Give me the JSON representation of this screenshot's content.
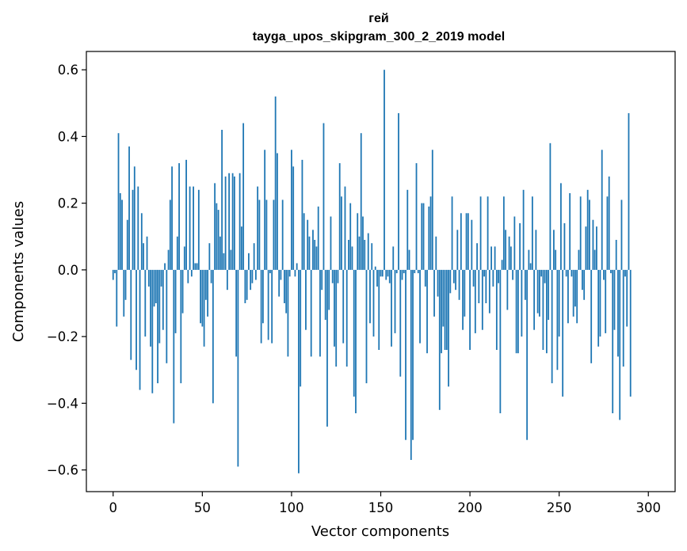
{
  "chart_data": {
    "type": "bar",
    "title": "гей",
    "subtitle": "tayga_upos_skipgram_300_2_2019 model",
    "xlabel": "Vector components",
    "ylabel": "Components values",
    "xlim": [
      -15,
      315
    ],
    "ylim": [
      -0.665,
      0.655
    ],
    "xticks": [
      0,
      50,
      100,
      150,
      200,
      250,
      300
    ],
    "xtick_labels": [
      "0",
      "50",
      "100",
      "150",
      "200",
      "250",
      "300"
    ],
    "yticks": [
      0.6,
      0.4,
      0.2,
      0.0,
      -0.2,
      -0.4,
      -0.6
    ],
    "ytick_labels": [
      "0.6",
      "0.4",
      "0.2",
      "0.0",
      "−0.2",
      "−0.4",
      "−0.6"
    ],
    "grid": false,
    "bar_color": "#1f77b4",
    "x_start": 0,
    "values": [
      -0.03,
      -0.01,
      -0.17,
      0.41,
      0.23,
      0.21,
      -0.14,
      -0.09,
      0.15,
      0.37,
      -0.27,
      0.24,
      0.31,
      -0.3,
      0.25,
      -0.36,
      0.17,
      0.08,
      -0.2,
      0.1,
      -0.05,
      -0.23,
      -0.37,
      -0.11,
      -0.1,
      -0.34,
      -0.22,
      -0.05,
      -0.18,
      0.02,
      -0.28,
      0.06,
      0.21,
      0.31,
      -0.46,
      -0.19,
      0.1,
      0.32,
      -0.34,
      -0.13,
      0.07,
      0.33,
      -0.04,
      0.25,
      -0.02,
      0.25,
      0.02,
      0.02,
      0.24,
      -0.16,
      -0.17,
      -0.23,
      -0.09,
      -0.14,
      0.08,
      -0.04,
      -0.4,
      0.26,
      0.2,
      0.18,
      0.1,
      0.42,
      0.05,
      0.28,
      -0.06,
      0.29,
      0.06,
      0.29,
      0.28,
      -0.26,
      -0.59,
      0.29,
      0.13,
      0.44,
      -0.1,
      -0.09,
      0.05,
      -0.06,
      -0.04,
      0.08,
      -0.03,
      0.25,
      0.21,
      -0.22,
      -0.16,
      0.36,
      0.21,
      -0.21,
      -0.01,
      -0.22,
      0.21,
      0.52,
      0.35,
      -0.08,
      -0.03,
      0.21,
      -0.1,
      -0.13,
      -0.26,
      -0.02,
      0.36,
      0.31,
      -0.02,
      0.02,
      -0.61,
      -0.35,
      0.33,
      0.17,
      -0.18,
      0.15,
      0.1,
      -0.26,
      0.12,
      0.09,
      0.07,
      0.19,
      -0.26,
      -0.06,
      0.44,
      -0.15,
      -0.47,
      -0.12,
      0.16,
      -0.04,
      -0.23,
      -0.29,
      -0.04,
      0.32,
      0.22,
      -0.22,
      0.25,
      -0.29,
      0.09,
      0.2,
      0.07,
      -0.38,
      -0.43,
      0.17,
      0.1,
      0.41,
      0.16,
      0.09,
      -0.34,
      0.11,
      -0.16,
      0.08,
      -0.2,
      0.01,
      -0.05,
      -0.24,
      -0.02,
      -0.02,
      0.6,
      -0.03,
      -0.02,
      -0.04,
      -0.23,
      0.07,
      -0.19,
      -0.01,
      0.47,
      -0.32,
      -0.03,
      -0.01,
      -0.51,
      0.24,
      0.06,
      -0.57,
      -0.51,
      -0.01,
      0.32,
      -0.01,
      -0.22,
      0.2,
      0.2,
      -0.05,
      -0.25,
      0.19,
      0.22,
      0.36,
      -0.14,
      0.1,
      -0.08,
      -0.42,
      -0.25,
      -0.17,
      -0.24,
      -0.24,
      -0.35,
      -0.07,
      0.22,
      -0.04,
      -0.06,
      0.12,
      -0.09,
      0.17,
      -0.18,
      -0.14,
      0.17,
      0.17,
      -0.24,
      0.15,
      -0.05,
      -0.19,
      0.08,
      -0.1,
      0.22,
      -0.18,
      -0.02,
      -0.1,
      0.22,
      -0.13,
      0.07,
      -0.05,
      0.07,
      -0.24,
      -0.04,
      -0.43,
      0.03,
      0.22,
      0.12,
      -0.12,
      0.1,
      0.07,
      -0.03,
      0.16,
      -0.25,
      -0.25,
      0.14,
      -0.2,
      0.24,
      -0.09,
      -0.51,
      0.06,
      0.02,
      0.22,
      -0.18,
      0.12,
      -0.13,
      -0.14,
      -0.02,
      -0.24,
      -0.04,
      -0.25,
      -0.15,
      0.38,
      -0.34,
      0.12,
      0.06,
      -0.3,
      -0.2,
      0.26,
      -0.38,
      0.14,
      -0.02,
      -0.16,
      0.23,
      -0.02,
      -0.14,
      -0.11,
      -0.16,
      0.06,
      0.22,
      -0.06,
      -0.09,
      0.13,
      0.24,
      0.21,
      -0.28,
      0.15,
      0.06,
      0.13,
      -0.23,
      -0.2,
      0.36,
      -0.03,
      -0.19,
      0.22,
      0.28,
      -0.01,
      -0.43,
      -0.18,
      0.09,
      -0.26,
      -0.45,
      0.21,
      -0.29,
      -0.02,
      -0.17,
      0.47,
      -0.38
    ]
  }
}
